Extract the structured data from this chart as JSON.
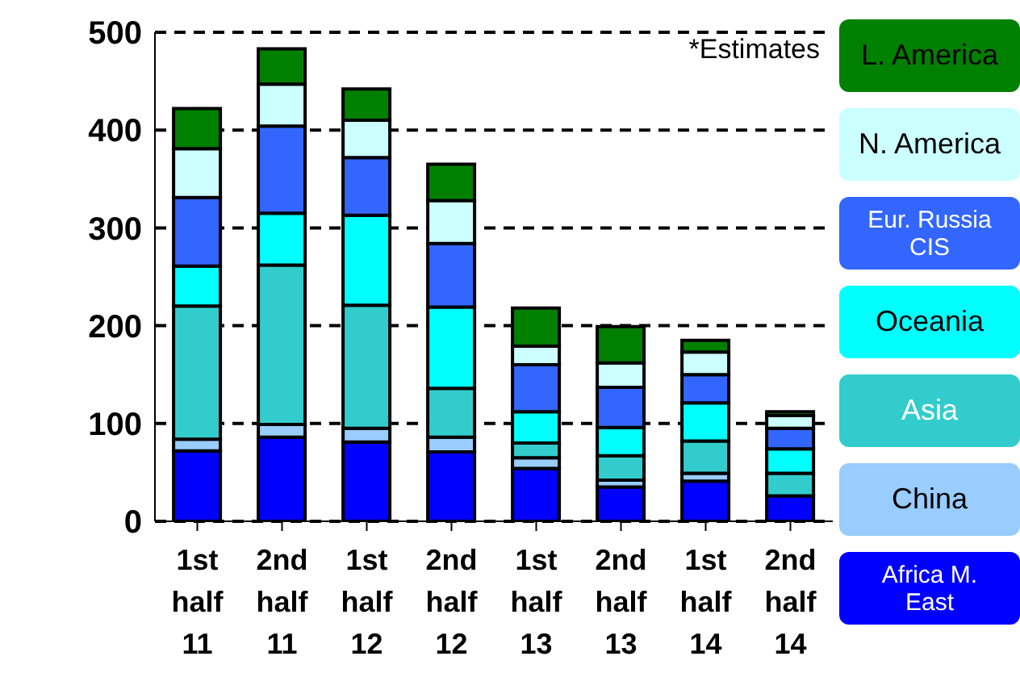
{
  "chart_data": {
    "type": "bar",
    "stacked": true,
    "categories": [
      "1st half 11",
      "2nd half 11",
      "1st half 12",
      "2nd half 12",
      "1st half 13",
      "2nd half 13",
      "1st half 14",
      "2nd half 14"
    ],
    "series": [
      {
        "name": "Africa M. East",
        "color": "#0000ff",
        "values": [
          72,
          86,
          81,
          71,
          54,
          35,
          41,
          26
        ]
      },
      {
        "name": "China",
        "color": "#99ccff",
        "values": [
          12,
          13,
          14,
          15,
          11,
          7,
          8,
          null
        ]
      },
      {
        "name": "Asia",
        "color": "#33cccc",
        "values": [
          136,
          163,
          126,
          50,
          15,
          25,
          33,
          23
        ]
      },
      {
        "name": "Oceania",
        "color": "#00ffff",
        "values": [
          41,
          53,
          92,
          83,
          32,
          29,
          39,
          25
        ]
      },
      {
        "name": "Eur. Russia CIS",
        "color": "#3366ff",
        "values": [
          70,
          89,
          59,
          65,
          48,
          41,
          29,
          21
        ]
      },
      {
        "name": "N. America",
        "color": "#ccffff",
        "values": [
          50,
          43,
          38,
          44,
          19,
          25,
          23,
          13
        ]
      },
      {
        "name": "L. America",
        "color": "#008000",
        "values": [
          41,
          36,
          32,
          37,
          39,
          37,
          12,
          4
        ]
      }
    ],
    "ylim": [
      0,
      500
    ],
    "yticks": [
      0,
      100,
      200,
      300,
      400,
      500
    ],
    "grid": "y",
    "legend": "right",
    "annotations": [
      "*Estimates"
    ]
  }
}
